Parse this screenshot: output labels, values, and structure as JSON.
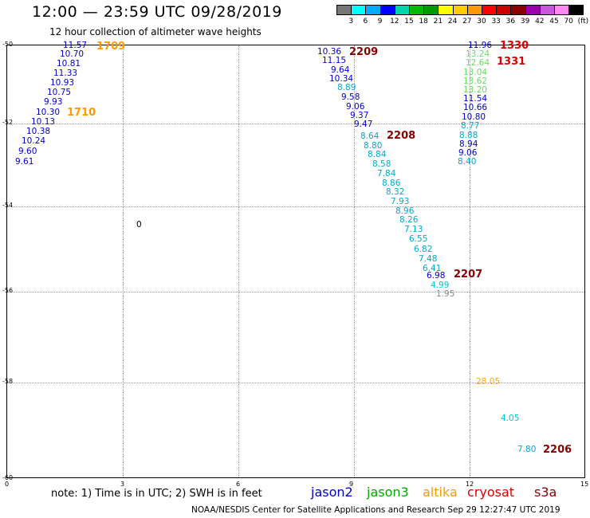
{
  "header": {
    "title": "12:00 — 23:59 UTC 09/28/2019",
    "subtitle": "12 hour collection of altimeter wave heights"
  },
  "color_scale": {
    "labels": [
      "3",
      "6",
      "9",
      "12",
      "15",
      "18",
      "21",
      "24",
      "27",
      "30",
      "33",
      "36",
      "39",
      "42",
      "45",
      "70",
      "(ft)"
    ],
    "colors": [
      "#777777",
      "#00ffff",
      "#00aaff",
      "#0000ff",
      "#00d4aa",
      "#00bb00",
      "#009900",
      "#ffff00",
      "#ffcc00",
      "#ff9900",
      "#ff0000",
      "#cc0000",
      "#880000",
      "#9900aa",
      "#cc55dd",
      "#ff88ee",
      "#000000"
    ]
  },
  "axes": {
    "y_labels": [
      "-50",
      "-52",
      "-54",
      "-56",
      "-58",
      "-60"
    ],
    "x_labels": [
      "0",
      "3",
      "6",
      "9",
      "12",
      "15"
    ]
  },
  "tracks": {
    "track_1709": {
      "time": "1709",
      "time_color": "#ff9900",
      "values": [
        "11.57",
        "10.70",
        "10.81",
        "11.33",
        "10.93",
        "10.75",
        "9.93",
        "10.30",
        "10.13",
        "10.38",
        "10.24",
        "9.60",
        "9.61"
      ],
      "colors": [
        "#0000cc",
        "#0000cc",
        "#0000cc",
        "#0000cc",
        "#0000cc",
        "#0000cc",
        "#0000cc",
        "#0000cc",
        "#0000cc",
        "#0000cc",
        "#0000cc",
        "#0000cc",
        "#0000cc"
      ],
      "time2": "1710"
    },
    "track_2209": {
      "time_a": "2209",
      "time_b": "2208",
      "time_c": "2207",
      "time_color": "#880000",
      "values": [
        "10.36",
        "11.15",
        "9.64",
        "10.34",
        "8.89",
        "9.58",
        "9.06",
        "9.37",
        "9.47",
        "8.64",
        "8.80",
        "8.84",
        "8.58",
        "7.84",
        "8.86",
        "8.32",
        "7.93",
        "8.96",
        "8.26",
        "7.13",
        "6.55",
        "6.82",
        "7.48",
        "6.41",
        "6.98",
        "4.99",
        "1.95"
      ],
      "colors": [
        "#0000cc",
        "#0000cc",
        "#0000cc",
        "#0000cc",
        "#00aacc",
        "#0000cc",
        "#0000cc",
        "#0000cc",
        "#0000cc",
        "#00aacc",
        "#00aacc",
        "#00aacc",
        "#00aacc",
        "#00aacc",
        "#00aacc",
        "#00aacc",
        "#00aacc",
        "#00aacc",
        "#00aacc",
        "#00aacc",
        "#00aacc",
        "#00aacc",
        "#00aacc",
        "#00aacc",
        "#0000cc",
        "#00cccc",
        "#888888"
      ]
    },
    "track_1330": {
      "time_a": "1330",
      "time_b": "1331",
      "time_color": "#dd0000",
      "values": [
        "11.96",
        "13.24",
        "12.64",
        "13.04",
        "13.62",
        "13.20",
        "11.54",
        "10.66",
        "10.80",
        "8.77",
        "8.88",
        "8.94",
        "9.06",
        "8.40"
      ],
      "colors": [
        "#0000cc",
        "#66dd66",
        "#66dd66",
        "#66dd66",
        "#66dd66",
        "#66dd66",
        "#0000cc",
        "#0000cc",
        "#0000cc",
        "#00aacc",
        "#00aacc",
        "#0000cc",
        "#0000cc",
        "#00aacc"
      ]
    },
    "track_2206": {
      "time": "2206",
      "time_color": "#880000",
      "values": [
        "28.05",
        "4.05",
        "7.80"
      ],
      "colors": [
        "#ffaa00",
        "#00cccc",
        "#00aacc"
      ]
    },
    "isolated_value": "0"
  },
  "footer": {
    "note": "note:  1) Time is in UTC;  2) SWH is in feet",
    "legend": [
      {
        "name": "jason2",
        "color": "#0000cc"
      },
      {
        "name": "jason3",
        "color": "#00aa00"
      },
      {
        "name": "altika",
        "color": "#ff9900"
      },
      {
        "name": "cryosat",
        "color": "#dd0000"
      },
      {
        "name": "s3a",
        "color": "#880000"
      }
    ],
    "credit": "NOAA/NESDIS Center for Satellite Applications and Research    Sep 29 12:27:47 UTC 2019"
  }
}
